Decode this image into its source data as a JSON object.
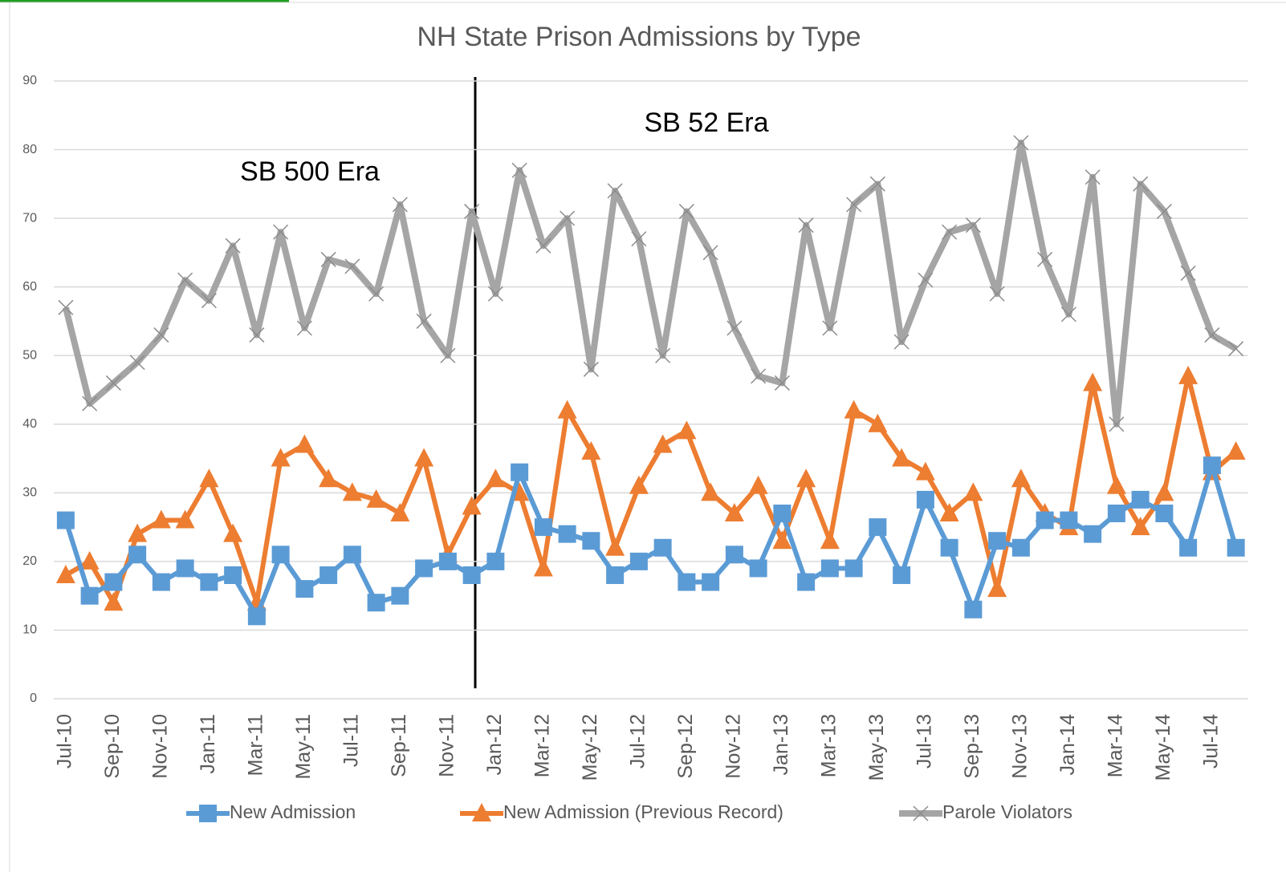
{
  "chart_data": {
    "type": "line",
    "title": "NH State Prison Admissions by Type",
    "categories": [
      "Jul-10",
      null,
      "Sep-10",
      null,
      "Nov-10",
      null,
      "Jan-11",
      null,
      "Mar-11",
      null,
      "May-11",
      null,
      "Jul-11",
      null,
      "Sep-11",
      null,
      "Nov-11",
      null,
      "Jan-12",
      null,
      "Mar-12",
      null,
      "May-12",
      null,
      "Jul-12",
      null,
      "Sep-12",
      null,
      "Nov-12",
      null,
      "Jan-13",
      null,
      "Mar-13",
      null,
      "May-13",
      null,
      "Jul-13",
      null,
      "Sep-13",
      null,
      "Nov-13",
      null,
      "Jan-14",
      null,
      "Mar-14",
      null,
      "May-14",
      null,
      "Jul-14",
      null
    ],
    "series": [
      {
        "name": "New Admission",
        "color": "#5b9bd5",
        "marker": "square",
        "values": [
          26,
          15,
          17,
          21,
          17,
          19,
          17,
          18,
          12,
          21,
          16,
          18,
          21,
          14,
          15,
          19,
          20,
          18,
          20,
          33,
          25,
          24,
          23,
          18,
          20,
          22,
          17,
          17,
          21,
          19,
          27,
          17,
          19,
          19,
          25,
          18,
          29,
          22,
          13,
          23,
          22,
          26,
          26,
          24,
          27,
          29,
          27,
          22,
          34,
          22
        ]
      },
      {
        "name": "New Admission (Previous Record)",
        "color": "#ed7d31",
        "marker": "triangle",
        "values": [
          18,
          20,
          14,
          24,
          26,
          26,
          32,
          24,
          14,
          35,
          37,
          32,
          30,
          29,
          27,
          35,
          21,
          28,
          32,
          30,
          19,
          42,
          36,
          22,
          31,
          37,
          39,
          30,
          27,
          31,
          23,
          32,
          23,
          42,
          40,
          35,
          33,
          27,
          30,
          16,
          32,
          27,
          25,
          46,
          31,
          25,
          30,
          47,
          33,
          36
        ]
      },
      {
        "name": "Parole Violators",
        "color": "#a5a5a5",
        "marker": "x",
        "values": [
          57,
          43,
          46,
          49,
          53,
          61,
          58,
          66,
          53,
          68,
          54,
          64,
          63,
          59,
          72,
          55,
          50,
          71,
          59,
          77,
          66,
          70,
          48,
          74,
          67,
          50,
          71,
          65,
          54,
          47,
          46,
          69,
          54,
          72,
          75,
          52,
          61,
          68,
          69,
          59,
          81,
          64,
          56,
          76,
          40,
          75,
          71,
          62,
          53,
          51
        ]
      }
    ],
    "ylim": [
      0,
      90
    ],
    "yticks": [
      0,
      10,
      20,
      30,
      40,
      50,
      60,
      70,
      80,
      90
    ],
    "grid": true,
    "legend": "bottom",
    "annotations": [
      {
        "text": "SB 500 Era"
      },
      {
        "text": "SB 52 Era"
      }
    ]
  }
}
